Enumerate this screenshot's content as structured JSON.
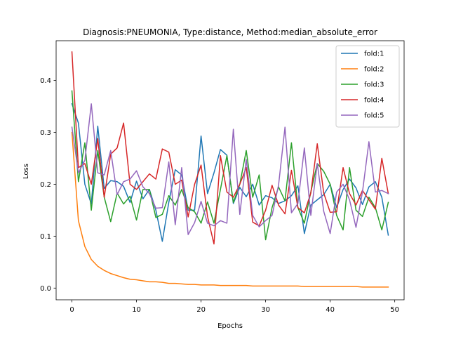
{
  "chart_data": {
    "type": "line",
    "title": "Diagnosis:PNEUMONIA, Type:distance, Method:median_absolute_error",
    "xlabel": "Epochs",
    "ylabel": "Loss",
    "xlim": [
      -2.45,
      51.45
    ],
    "ylim": [
      -0.0226,
      0.4766
    ],
    "xticks": [
      0,
      10,
      20,
      30,
      40,
      50
    ],
    "yticks": [
      0.0,
      0.1,
      0.2,
      0.3,
      0.4
    ],
    "ytick_labels": [
      "0.0",
      "0.1",
      "0.2",
      "0.3",
      "0.4"
    ],
    "grid": false,
    "legend_position": "top-right",
    "x": [
      0,
      1,
      2,
      3,
      4,
      5,
      6,
      7,
      8,
      9,
      10,
      11,
      12,
      13,
      14,
      15,
      16,
      17,
      18,
      19,
      20,
      21,
      22,
      23,
      24,
      25,
      26,
      27,
      28,
      29,
      30,
      31,
      32,
      33,
      34,
      35,
      36,
      37,
      38,
      39,
      40,
      41,
      42,
      43,
      44,
      45,
      46,
      47,
      48,
      49
    ],
    "series": [
      {
        "name": "fold:1",
        "color": "#1f77b4",
        "values": [
          0.355,
          0.318,
          0.2,
          0.162,
          0.312,
          0.192,
          0.207,
          0.205,
          0.196,
          0.165,
          0.206,
          0.172,
          0.19,
          0.15,
          0.09,
          0.165,
          0.228,
          0.218,
          0.15,
          0.15,
          0.293,
          0.182,
          0.222,
          0.267,
          0.256,
          0.163,
          0.194,
          0.176,
          0.2,
          0.16,
          0.178,
          0.174,
          0.163,
          0.168,
          0.178,
          0.197,
          0.105,
          0.16,
          0.17,
          0.18,
          0.2,
          0.155,
          0.19,
          0.21,
          0.193,
          0.161,
          0.195,
          0.205,
          0.175,
          0.102
        ]
      },
      {
        "name": "fold:2",
        "color": "#ff7f0e",
        "values": [
          0.3,
          0.13,
          0.08,
          0.055,
          0.042,
          0.034,
          0.028,
          0.024,
          0.02,
          0.017,
          0.016,
          0.014,
          0.012,
          0.012,
          0.011,
          0.009,
          0.009,
          0.008,
          0.007,
          0.007,
          0.006,
          0.006,
          0.006,
          0.005,
          0.005,
          0.005,
          0.005,
          0.005,
          0.004,
          0.004,
          0.004,
          0.004,
          0.004,
          0.004,
          0.004,
          0.004,
          0.003,
          0.003,
          0.003,
          0.003,
          0.003,
          0.003,
          0.003,
          0.003,
          0.003,
          0.002,
          0.002,
          0.002,
          0.002,
          0.002
        ]
      },
      {
        "name": "fold:3",
        "color": "#2ca02c",
        "values": [
          0.38,
          0.205,
          0.28,
          0.15,
          0.265,
          0.175,
          0.128,
          0.183,
          0.162,
          0.177,
          0.131,
          0.19,
          0.19,
          0.136,
          0.142,
          0.178,
          0.16,
          0.19,
          0.155,
          0.147,
          0.125,
          0.166,
          0.125,
          0.19,
          0.255,
          0.165,
          0.2,
          0.265,
          0.175,
          0.218,
          0.093,
          0.155,
          0.195,
          0.168,
          0.28,
          0.155,
          0.125,
          0.185,
          0.24,
          0.225,
          0.2,
          0.14,
          0.112,
          0.232,
          0.15,
          0.138,
          0.175,
          0.155,
          0.112,
          0.165
        ]
      },
      {
        "name": "fold:4",
        "color": "#d62728",
        "values": [
          0.455,
          0.232,
          0.24,
          0.2,
          0.288,
          0.175,
          0.258,
          0.27,
          0.318,
          0.2,
          0.19,
          0.205,
          0.22,
          0.21,
          0.268,
          0.262,
          0.2,
          0.208,
          0.137,
          0.2,
          0.237,
          0.138,
          0.085,
          0.255,
          0.185,
          0.175,
          0.2,
          0.232,
          0.127,
          0.12,
          0.15,
          0.198,
          0.16,
          0.143,
          0.227,
          0.155,
          0.145,
          0.183,
          0.278,
          0.183,
          0.146,
          0.147,
          0.232,
          0.182,
          0.16,
          0.188,
          0.17,
          0.152,
          0.25,
          0.182
        ]
      },
      {
        "name": "fold:5",
        "color": "#9467bd",
        "values": [
          0.31,
          0.222,
          0.246,
          0.355,
          0.222,
          0.218,
          0.265,
          0.18,
          0.205,
          0.21,
          0.226,
          0.195,
          0.182,
          0.154,
          0.155,
          0.243,
          0.122,
          0.232,
          0.103,
          0.126,
          0.167,
          0.125,
          0.12,
          0.13,
          0.125,
          0.306,
          0.142,
          0.248,
          0.14,
          0.118,
          0.13,
          0.14,
          0.198,
          0.31,
          0.145,
          0.163,
          0.27,
          0.14,
          0.24,
          0.148,
          0.105,
          0.185,
          0.2,
          0.17,
          0.117,
          0.185,
          0.282,
          0.185,
          0.188,
          0.182
        ]
      }
    ]
  }
}
